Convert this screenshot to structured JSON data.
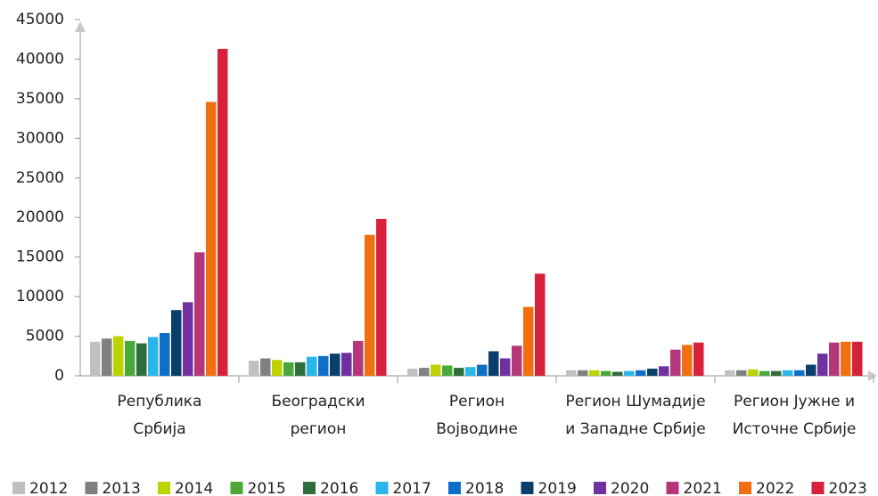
{
  "chart_data": {
    "type": "bar",
    "categories": [
      "Република\nСрбија",
      "Београдски\nрегион",
      "Регион\nВојводине",
      "Регион Шумадије\nи Западне Србије",
      "Регион Јужне и\nИсточне Србије"
    ],
    "series": [
      {
        "name": "2012",
        "color": "#c0c0c0",
        "values": [
          4300,
          1900,
          900,
          700,
          700
        ]
      },
      {
        "name": "2013",
        "color": "#808080",
        "values": [
          4700,
          2200,
          1000,
          700,
          700
        ]
      },
      {
        "name": "2014",
        "color": "#bcd300",
        "values": [
          5000,
          2000,
          1400,
          700,
          800
        ]
      },
      {
        "name": "2015",
        "color": "#4aa83a",
        "values": [
          4400,
          1700,
          1300,
          600,
          600
        ]
      },
      {
        "name": "2016",
        "color": "#2d6e3c",
        "values": [
          4100,
          1700,
          1000,
          500,
          600
        ]
      },
      {
        "name": "2017",
        "color": "#29b6ea",
        "values": [
          4900,
          2400,
          1100,
          600,
          700
        ]
      },
      {
        "name": "2018",
        "color": "#0f6fc6",
        "values": [
          5400,
          2500,
          1400,
          700,
          700
        ]
      },
      {
        "name": "2019",
        "color": "#0a3f6b",
        "values": [
          8300,
          2800,
          3100,
          900,
          1400
        ]
      },
      {
        "name": "2020",
        "color": "#7030a0",
        "values": [
          9300,
          2900,
          2200,
          1200,
          2800
        ]
      },
      {
        "name": "2021",
        "color": "#b5367a",
        "values": [
          15600,
          4400,
          3800,
          3300,
          4200
        ]
      },
      {
        "name": "2022",
        "color": "#f26f0f",
        "values": [
          34600,
          17800,
          8700,
          3900,
          4300
        ]
      },
      {
        "name": "2023",
        "color": "#d7203a",
        "values": [
          41300,
          19800,
          12900,
          4200,
          4300
        ]
      }
    ],
    "ylim": [
      0,
      45000
    ],
    "yticks": [
      0,
      5000,
      10000,
      15000,
      20000,
      25000,
      30000,
      35000,
      40000,
      45000
    ]
  }
}
